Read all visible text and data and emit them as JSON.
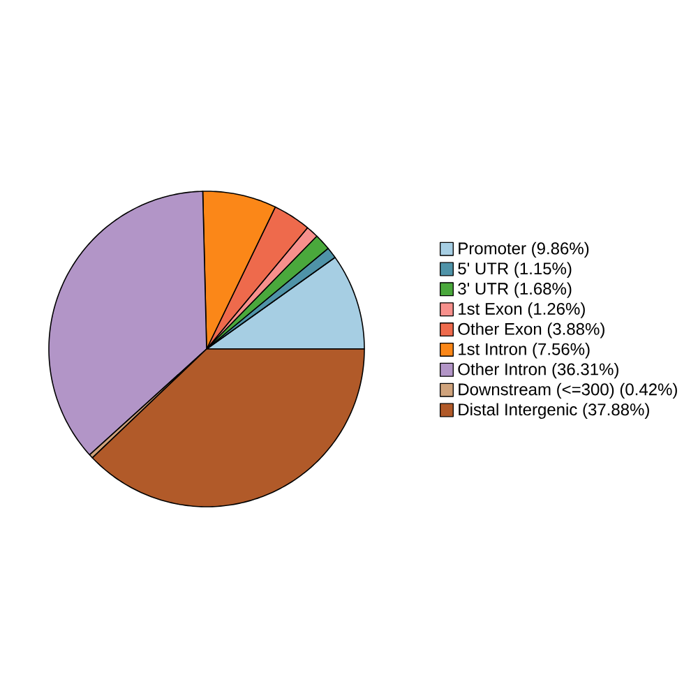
{
  "chart_data": {
    "type": "pie",
    "categories": [
      "Promoter (9.86%)",
      "5' UTR (1.15%)",
      "3' UTR (1.68%)",
      "1st Exon (1.26%)",
      "Other Exon (3.88%)",
      "1st Intron (7.56%)",
      "Other Intron (36.31%)",
      "Downstream (<=300) (0.42%)",
      "Distal Intergenic (37.88%)"
    ],
    "values": [
      9.86,
      1.15,
      1.68,
      1.26,
      3.88,
      7.56,
      36.31,
      0.42,
      37.88
    ],
    "colors": [
      "#a6cee3",
      "#4f93a8",
      "#4aa83c",
      "#f7908c",
      "#ee6a4c",
      "#fb8718",
      "#b295c7",
      "#cfa37c",
      "#b15a29"
    ],
    "legend": "right"
  }
}
